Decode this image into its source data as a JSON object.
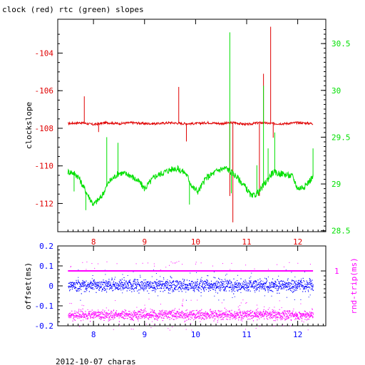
{
  "title": "clock (red) rtc (green) slopes",
  "footer": "2012-10-07 charas",
  "colors": {
    "clock": "#e00000",
    "rtc": "#00e000",
    "offset": "#0000ff",
    "rtt": "#ff00ff",
    "axis": "#000000",
    "axis_bottom": "#0000ff",
    "axis_right_top": "#00e000",
    "axis_right_bottom": "#ff00ff"
  },
  "chart_data": [
    {
      "type": "line",
      "title": "clock (red) rtc (green) slopes",
      "xlim": [
        7.3,
        12.55
      ],
      "x_ticks": [
        "8",
        "9",
        "10",
        "11",
        "12"
      ],
      "ylabel": "clockslope",
      "ylim": [
        -113.5,
        -102.2
      ],
      "y_ticks": [
        "-104",
        "-106",
        "-108",
        "-110",
        "-112"
      ],
      "y2lim": [
        28.49,
        30.76
      ],
      "y2_ticks": [
        "30.5",
        "30",
        "29.5",
        "29",
        "28.5"
      ],
      "legend": "in title",
      "series": [
        {
          "name": "clock",
          "color": "#e00000",
          "axis": "left",
          "x": [
            7.5,
            7.75,
            8.0,
            8.25,
            8.5,
            8.75,
            9.0,
            9.25,
            9.5,
            9.75,
            10.0,
            10.25,
            10.5,
            10.75,
            11.0,
            11.25,
            11.5,
            11.75,
            12.0,
            12.3
          ],
          "y": [
            -107.75,
            -107.7,
            -107.8,
            -107.7,
            -107.75,
            -107.7,
            -107.75,
            -107.75,
            -107.7,
            -107.75,
            -107.75,
            -107.7,
            -107.75,
            -107.7,
            -107.8,
            -107.7,
            -107.75,
            -107.75,
            -107.7,
            -107.75
          ],
          "spikes": [
            {
              "x": 7.82,
              "y": -106.3
            },
            {
              "x": 8.1,
              "y": -108.2
            },
            {
              "x": 9.67,
              "y": -105.8
            },
            {
              "x": 9.82,
              "y": -108.7
            },
            {
              "x": 10.67,
              "y": -111.6
            },
            {
              "x": 10.73,
              "y": -113.0
            },
            {
              "x": 11.25,
              "y": -111.6
            },
            {
              "x": 11.33,
              "y": -105.1
            },
            {
              "x": 11.47,
              "y": -102.6
            },
            {
              "x": 11.52,
              "y": -108.5
            }
          ]
        },
        {
          "name": "rtc",
          "color": "#00e000",
          "axis": "right",
          "x": [
            7.5,
            7.6,
            7.7,
            7.85,
            8.0,
            8.15,
            8.3,
            8.5,
            8.7,
            8.9,
            9.0,
            9.2,
            9.4,
            9.6,
            9.8,
            9.95,
            10.05,
            10.2,
            10.45,
            10.6,
            10.8,
            11.0,
            11.1,
            11.25,
            11.4,
            11.5,
            11.7,
            11.9,
            12.0,
            12.15,
            12.3
          ],
          "y": [
            29.13,
            29.12,
            29.08,
            28.92,
            28.78,
            28.86,
            29.02,
            29.12,
            29.1,
            29.02,
            28.95,
            29.08,
            29.13,
            29.17,
            29.12,
            28.96,
            28.92,
            29.06,
            29.15,
            29.17,
            29.08,
            28.95,
            28.86,
            28.92,
            29.04,
            29.12,
            29.11,
            29.08,
            28.95,
            28.98,
            29.08
          ],
          "spikes": [
            {
              "x": 7.62,
              "y": 28.92
            },
            {
              "x": 7.85,
              "y": 28.72
            },
            {
              "x": 8.26,
              "y": 29.5
            },
            {
              "x": 8.48,
              "y": 29.44
            },
            {
              "x": 9.65,
              "y": 29.2
            },
            {
              "x": 9.88,
              "y": 28.78
            },
            {
              "x": 10.67,
              "y": 30.62
            },
            {
              "x": 10.7,
              "y": 28.9
            },
            {
              "x": 11.2,
              "y": 29.2
            },
            {
              "x": 11.33,
              "y": 30.05
            },
            {
              "x": 11.42,
              "y": 29.38
            },
            {
              "x": 11.55,
              "y": 29.55
            },
            {
              "x": 12.3,
              "y": 29.38
            }
          ]
        }
      ]
    },
    {
      "type": "scatter",
      "xlim": [
        7.3,
        12.55
      ],
      "x_ticks": [
        "8",
        "9",
        "10",
        "11",
        "12"
      ],
      "ylabel": "offset(ms)",
      "ylim": [
        -0.2,
        0.2
      ],
      "y_ticks": [
        "0.2",
        "0.1",
        "0",
        "-0.1",
        "-0.2"
      ],
      "y2label": "rnd-trip(ms)",
      "y2_ticks": [
        "1"
      ],
      "series": [
        {
          "name": "offset",
          "color": "#0000ff",
          "axis": "left",
          "center": 0.005,
          "spread": 0.015,
          "x_range": [
            7.5,
            12.3
          ]
        },
        {
          "name": "rnd-trip",
          "color": "#ff00ff",
          "axis": "right",
          "center": 1.0,
          "x_range": [
            7.5,
            12.3
          ]
        },
        {
          "name": "rnd-trip",
          "color": "#ff00ff",
          "axis": "left",
          "center": -0.143,
          "spread": 0.012,
          "x_range": [
            7.5,
            12.3
          ]
        }
      ]
    }
  ]
}
